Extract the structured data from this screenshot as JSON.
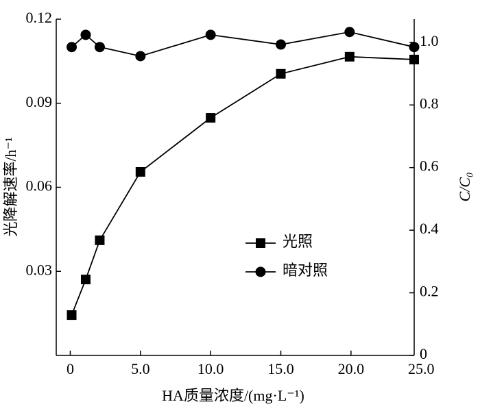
{
  "chart_data": {
    "type": "line",
    "x_label": "HA质量浓度/(mg·L⁻¹)",
    "y_label": "光降解速率/h⁻¹",
    "y2_label": "C/C₀",
    "x": [
      0.1,
      1.1,
      2.1,
      5.0,
      10.0,
      15.0,
      19.9,
      24.5
    ],
    "series": [
      {
        "name": "光照",
        "color": "#000000",
        "marker": "square",
        "values": [
          0.0144,
          0.0271,
          0.0411,
          0.0655,
          0.0848,
          0.1005,
          0.1066,
          0.1056
        ]
      },
      {
        "name": "暗对照",
        "color": "#000000",
        "marker": "circle",
        "axis": "y2",
        "values": [
          0.985,
          1.024,
          0.985,
          0.956,
          1.024,
          0.993,
          1.033,
          0.985
        ]
      }
    ],
    "xlim": [
      -1,
      24.5
    ],
    "xticks": [
      0,
      {
        "value": 5,
        "label": "5.0"
      },
      {
        "value": 10,
        "label": "10.0"
      },
      {
        "value": 15,
        "label": "15.0"
      },
      {
        "value": 20,
        "label": "20.0"
      },
      {
        "value": 25,
        "label": "25.0"
      }
    ],
    "ylim": [
      0,
      0.12
    ],
    "yticks": [
      0.03,
      0.06,
      0.09,
      0.12
    ],
    "y2lim": [
      0,
      1.074
    ],
    "y2ticks": [
      0,
      0.2,
      0.4,
      0.6,
      0.8,
      {
        "value": 1,
        "label": "1.0"
      }
    ]
  }
}
